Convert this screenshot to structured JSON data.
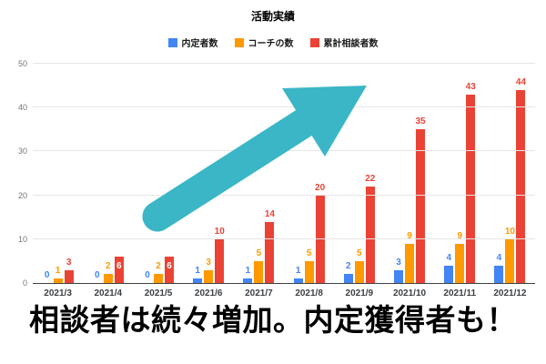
{
  "poster": {
    "title": "活動実績",
    "headline": "相談者は続々増加。内定獲得者も！"
  },
  "legend": {
    "items": [
      {
        "label": "内定者数",
        "color": "#4285f4"
      },
      {
        "label": "コーチの数",
        "color": "#ff9900"
      },
      {
        "label": "累計相談者数",
        "color": "#ea4335"
      }
    ]
  },
  "arrow": {
    "color": "#3ab6c6"
  },
  "colors": {
    "gridline": "#e6e6e6",
    "baseline": "#424242",
    "y_tick_text": "#757575",
    "x_tick_text": "#3c4043",
    "inside_label_text": "#ffffff"
  },
  "chart_data": {
    "type": "bar",
    "title": "活動実績",
    "categories": [
      "2021/3",
      "2021/4",
      "2021/5",
      "2021/6",
      "2021/7",
      "2021/8",
      "2021/9",
      "2021/10",
      "2021/11",
      "2021/12"
    ],
    "series": [
      {
        "name": "内定者数",
        "color": "#4285f4",
        "values": [
          0,
          0,
          0,
          1,
          1,
          1,
          2,
          3,
          4,
          4
        ]
      },
      {
        "name": "コーチの数",
        "color": "#ff9900",
        "values": [
          1,
          2,
          2,
          3,
          5,
          5,
          5,
          9,
          9,
          10
        ]
      },
      {
        "name": "累計相談者数",
        "color": "#ea4335",
        "values": [
          3,
          6,
          6,
          10,
          14,
          20,
          22,
          35,
          43,
          44
        ],
        "labels_inside": [
          false,
          true,
          true,
          false,
          false,
          false,
          false,
          false,
          false,
          false
        ]
      }
    ],
    "ylim": [
      0,
      50
    ],
    "yticks": [
      0,
      10,
      20,
      30,
      40,
      50
    ],
    "grid": true,
    "legend_position": "top",
    "annotations": "value labels shown at each bar in series color; inside-bar labels are white"
  }
}
